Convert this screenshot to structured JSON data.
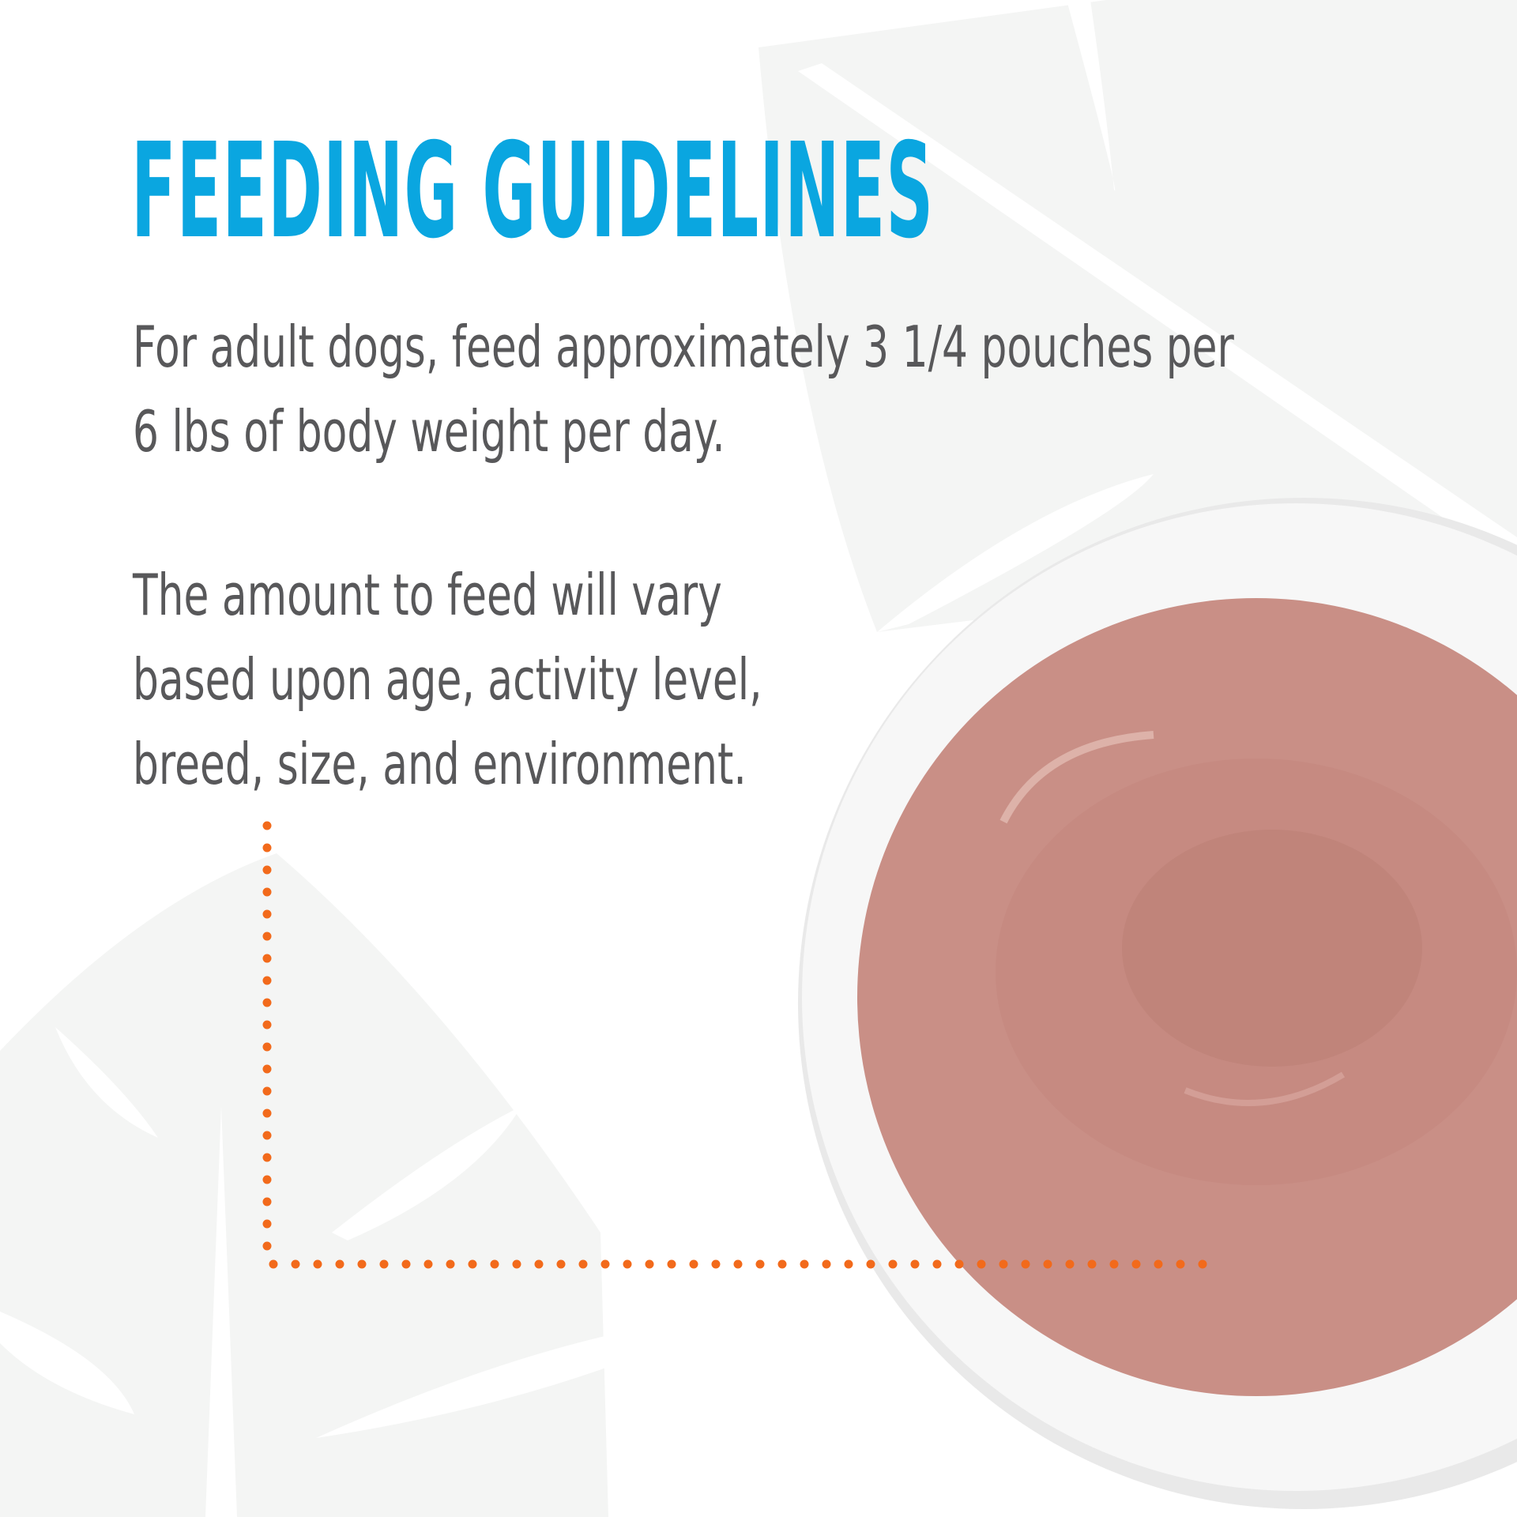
{
  "title": "FEEDING GUIDELINES",
  "paragraph1": {
    "line1": "For adult dogs, feed approximately 3 1/4 pouches per",
    "line2": "6 lbs of body weight per day."
  },
  "paragraph2": {
    "line1": "The amount to feed will vary",
    "line2": "based upon age, activity level,",
    "line3": "breed, size, and environment."
  },
  "colors": {
    "title": "#0aa6e0",
    "body_text": "#58585a",
    "dotted_line": "#f26a1b",
    "leaf": "#f4f5f4",
    "food": "#c98f86"
  }
}
